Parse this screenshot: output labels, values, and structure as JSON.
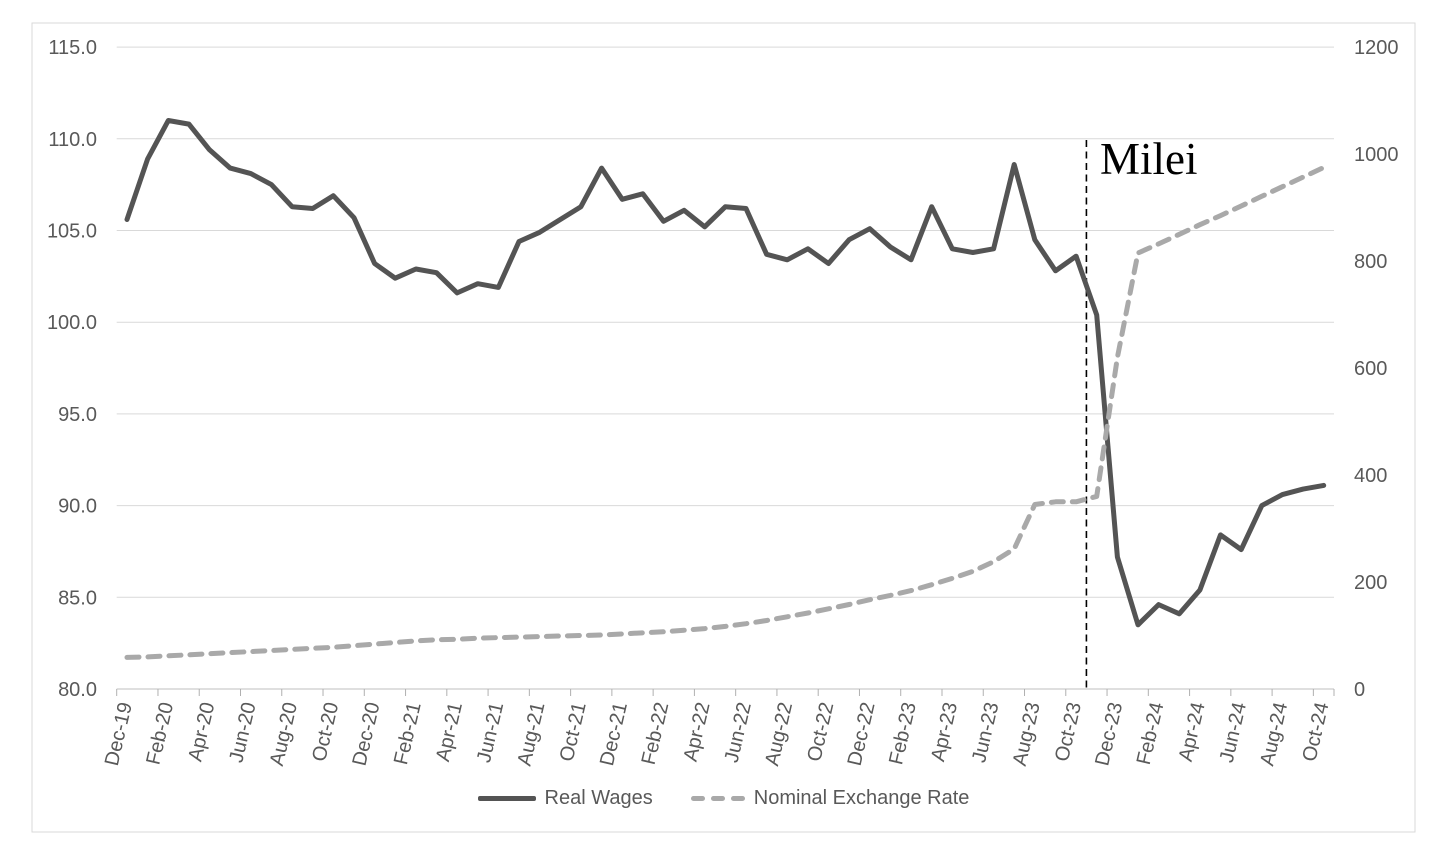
{
  "chart_data": {
    "type": "line",
    "title": "",
    "annotation": {
      "text": "Milei",
      "x_month": "Nov-23",
      "line_style": "dashed",
      "color": "#000000"
    },
    "months": [
      "Dec-19",
      "Jan-20",
      "Feb-20",
      "Mar-20",
      "Apr-20",
      "May-20",
      "Jun-20",
      "Jul-20",
      "Aug-20",
      "Sep-20",
      "Oct-20",
      "Nov-20",
      "Dec-20",
      "Jan-21",
      "Feb-21",
      "Mar-21",
      "Apr-21",
      "May-21",
      "Jun-21",
      "Jul-21",
      "Aug-21",
      "Sep-21",
      "Oct-21",
      "Nov-21",
      "Dec-21",
      "Jan-22",
      "Feb-22",
      "Mar-22",
      "Apr-22",
      "May-22",
      "Jun-22",
      "Jul-22",
      "Aug-22",
      "Sep-22",
      "Oct-22",
      "Nov-22",
      "Dec-22",
      "Jan-23",
      "Feb-23",
      "Mar-23",
      "Apr-23",
      "May-23",
      "Jun-23",
      "Jul-23",
      "Aug-23",
      "Sep-23",
      "Oct-23",
      "Nov-23",
      "Dec-23",
      "Jan-24",
      "Feb-24",
      "Mar-24",
      "Apr-24",
      "May-24",
      "Jun-24",
      "Jul-24",
      "Aug-24",
      "Sep-24",
      "Oct-24"
    ],
    "x_tick_labels": [
      "Dec-19",
      "Feb-20",
      "Apr-20",
      "Jun-20",
      "Aug-20",
      "Oct-20",
      "Dec-20",
      "Feb-21",
      "Apr-21",
      "Jun-21",
      "Aug-21",
      "Oct-21",
      "Dec-21",
      "Feb-22",
      "Apr-22",
      "Jun-22",
      "Aug-22",
      "Oct-22",
      "Dec-22",
      "Feb-23",
      "Apr-23",
      "Jun-23",
      "Aug-23",
      "Oct-23",
      "Dec-23",
      "Feb-24",
      "Apr-24",
      "Jun-24",
      "Aug-24",
      "Oct-24"
    ],
    "series": [
      {
        "id": "real-wages",
        "name": "Real Wages",
        "axis": "left",
        "style": "solid",
        "color": "#545454",
        "values": [
          105.6,
          108.9,
          111.0,
          110.8,
          109.4,
          108.4,
          108.1,
          107.5,
          106.3,
          106.2,
          106.9,
          105.7,
          103.2,
          102.4,
          102.9,
          102.7,
          101.6,
          102.1,
          101.9,
          104.4,
          104.9,
          105.6,
          106.3,
          108.4,
          106.7,
          107.0,
          105.5,
          106.1,
          105.2,
          106.3,
          106.2,
          103.7,
          103.4,
          104.0,
          103.2,
          104.5,
          105.1,
          104.1,
          103.4,
          106.3,
          104.0,
          103.8,
          104.0,
          108.6,
          104.5,
          102.8,
          103.6,
          100.4,
          87.2,
          83.5,
          84.6,
          84.1,
          85.4,
          88.4,
          87.6,
          90.0,
          90.6,
          90.9,
          91.1
        ]
      },
      {
        "id": "nominal-exchange-rate",
        "name": "Nominal Exchange Rate",
        "axis": "right",
        "style": "dashed",
        "color": "#a9a9a9",
        "values": [
          59,
          60,
          62,
          64,
          66,
          68,
          70,
          72,
          74,
          76,
          78,
          81,
          84,
          87,
          90,
          92,
          93,
          95,
          96,
          97,
          98,
          99,
          100,
          101,
          103,
          105,
          107,
          110,
          113,
          117,
          122,
          128,
          135,
          142,
          150,
          158,
          167,
          175,
          184,
          195,
          207,
          220,
          238,
          262,
          345,
          350,
          350,
          360,
          620,
          815,
          832,
          850,
          868,
          885,
          903,
          921,
          939,
          957,
          975
        ]
      }
    ],
    "left_axis": {
      "min": 80,
      "max": 115,
      "step": 5,
      "tick_labels": [
        "80.0",
        "85.0",
        "90.0",
        "95.0",
        "100.0",
        "105.0",
        "110.0",
        "115.0"
      ]
    },
    "right_axis": {
      "min": 0,
      "max": 1200,
      "step": 200,
      "tick_labels": [
        "0",
        "200",
        "400",
        "600",
        "800",
        "1000",
        "1200"
      ]
    },
    "layout": {
      "grid": "horizontal",
      "legend_position": "bottom"
    },
    "palette": {
      "gridline": "#d9d9d9",
      "axis_line": "#bfbfbf",
      "tick": "#b0b0b0",
      "axis_text": "#595959",
      "frame_border": "#d9d9d9",
      "background": "#ffffff"
    }
  }
}
